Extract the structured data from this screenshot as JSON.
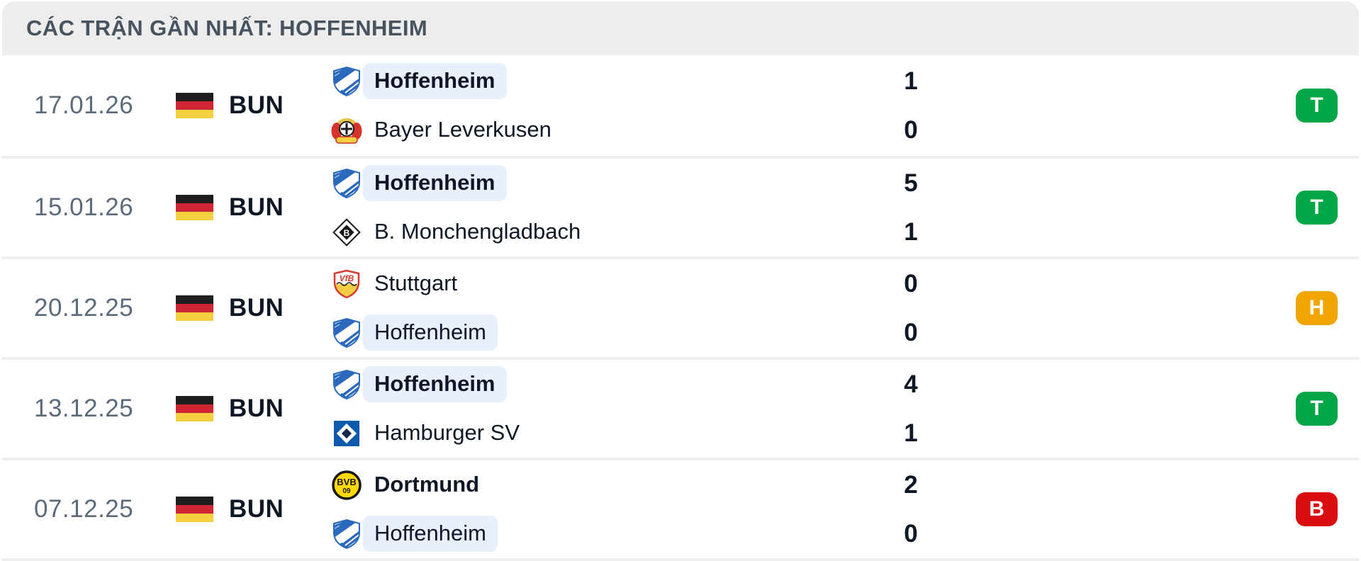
{
  "header": {
    "title": "CÁC TRẬN GẦN NHẤT: HOFFENHEIM"
  },
  "colors": {
    "win": "#00a546",
    "draw": "#f0a500",
    "loss": "#da0e0e",
    "highlight_pill": "#e7f0fc",
    "flag_black": "#1f1d1d",
    "flag_red": "#d02533",
    "flag_gold": "#f6cf3f"
  },
  "matches": [
    {
      "date": "17.01.26",
      "league": "BUN",
      "flag_icon": "germany-flag-icon",
      "team1": {
        "name": "Hoffenheim",
        "logo": "hoffenheim-logo",
        "highlighted": true,
        "winner": true
      },
      "team2": {
        "name": "Bayer Leverkusen",
        "logo": "leverkusen-logo",
        "highlighted": false,
        "winner": false
      },
      "score1": "1",
      "score2": "0",
      "result": {
        "label": "T",
        "type": "win"
      }
    },
    {
      "date": "15.01.26",
      "league": "BUN",
      "flag_icon": "germany-flag-icon",
      "team1": {
        "name": "Hoffenheim",
        "logo": "hoffenheim-logo",
        "highlighted": true,
        "winner": true
      },
      "team2": {
        "name": "B. Monchengladbach",
        "logo": "gladbach-logo",
        "highlighted": false,
        "winner": false
      },
      "score1": "5",
      "score2": "1",
      "result": {
        "label": "T",
        "type": "win"
      }
    },
    {
      "date": "20.12.25",
      "league": "BUN",
      "flag_icon": "germany-flag-icon",
      "team1": {
        "name": "Stuttgart",
        "logo": "stuttgart-logo",
        "highlighted": false,
        "winner": false
      },
      "team2": {
        "name": "Hoffenheim",
        "logo": "hoffenheim-logo",
        "highlighted": true,
        "winner": false
      },
      "score1": "0",
      "score2": "0",
      "result": {
        "label": "H",
        "type": "draw"
      }
    },
    {
      "date": "13.12.25",
      "league": "BUN",
      "flag_icon": "germany-flag-icon",
      "team1": {
        "name": "Hoffenheim",
        "logo": "hoffenheim-logo",
        "highlighted": true,
        "winner": true
      },
      "team2": {
        "name": "Hamburger SV",
        "logo": "hamburg-logo",
        "highlighted": false,
        "winner": false
      },
      "score1": "4",
      "score2": "1",
      "result": {
        "label": "T",
        "type": "win"
      }
    },
    {
      "date": "07.12.25",
      "league": "BUN",
      "flag_icon": "germany-flag-icon",
      "team1": {
        "name": "Dortmund",
        "logo": "dortmund-logo",
        "highlighted": false,
        "winner": true
      },
      "team2": {
        "name": "Hoffenheim",
        "logo": "hoffenheim-logo",
        "highlighted": true,
        "winner": false
      },
      "score1": "2",
      "score2": "0",
      "result": {
        "label": "B",
        "type": "loss"
      }
    }
  ]
}
